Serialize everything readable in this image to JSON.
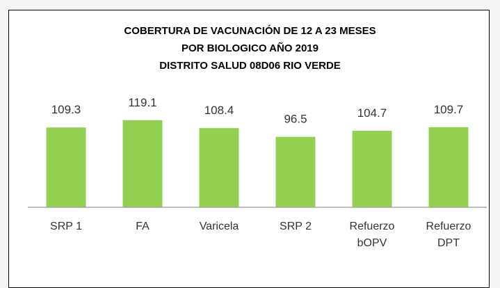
{
  "chart_data": {
    "type": "bar",
    "title": "COBERTURA DE VACUNACIÓN DE 12 A 23 MESES\nPOR BIOLOGICO AÑO 2019\nDISTRITO SALUD 08D06 RIO VERDE",
    "categories": [
      "SRP 1",
      "FA",
      "Varicela",
      "SRP 2",
      "Refuerzo bOPV",
      "Refuerzo DPT"
    ],
    "values": [
      109.3,
      119.1,
      108.4,
      96.5,
      104.7,
      109.7
    ],
    "color": "#92d050",
    "ylim": [
      0,
      140
    ]
  }
}
